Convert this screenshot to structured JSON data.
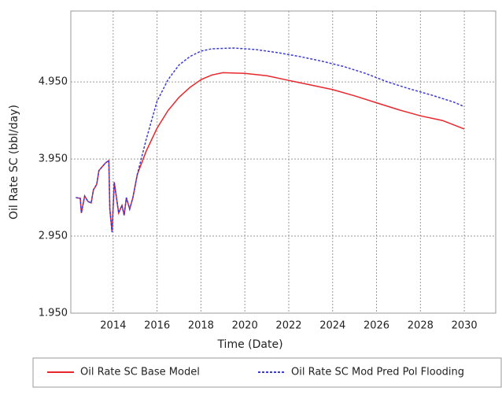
{
  "chart_data": {
    "type": "line",
    "xlabel": "Time (Date)",
    "ylabel": "Oil Rate SC (bbl/day)",
    "xlim": [
      2012.07,
      2031.43
    ],
    "ylim": [
      1.95,
      5.87
    ],
    "xticks": [
      2014,
      2016,
      2018,
      2020,
      2022,
      2024,
      2026,
      2028,
      2030
    ],
    "yticks": [
      {
        "value": 1.95,
        "label": "1.950"
      },
      {
        "value": 2.95,
        "label": "2.950"
      },
      {
        "value": 3.95,
        "label": "3.950"
      },
      {
        "value": 4.95,
        "label": "4.950"
      }
    ],
    "grid": true,
    "legend": "bottom",
    "series": [
      {
        "name": "Oil Rate SC Base Model",
        "color": "#e8262b",
        "dash": false,
        "x": [
          2012.3,
          2012.5,
          2012.55,
          2012.7,
          2012.85,
          2013.0,
          2013.1,
          2013.25,
          2013.35,
          2013.5,
          2013.65,
          2013.8,
          2013.85,
          2013.95,
          2014.05,
          2014.15,
          2014.25,
          2014.4,
          2014.5,
          2014.6,
          2014.75,
          2014.9,
          2015.1,
          2015.5,
          2016,
          2016.5,
          2017,
          2017.5,
          2018,
          2018.5,
          2019,
          2020,
          2021,
          2022,
          2023,
          2024,
          2025,
          2026,
          2027,
          2028,
          2029,
          2030
        ],
        "values": [
          3.45,
          3.44,
          3.25,
          3.47,
          3.4,
          3.38,
          3.55,
          3.62,
          3.8,
          3.85,
          3.9,
          3.93,
          3.3,
          3.0,
          3.65,
          3.45,
          3.25,
          3.35,
          3.22,
          3.45,
          3.3,
          3.45,
          3.75,
          4.05,
          4.35,
          4.58,
          4.75,
          4.88,
          4.98,
          5.04,
          5.07,
          5.06,
          5.03,
          4.97,
          4.91,
          4.85,
          4.77,
          4.68,
          4.59,
          4.51,
          4.45,
          4.34
        ]
      },
      {
        "name": "Oil Rate SC Mod Pred Pol Flooding",
        "color": "#3a3ad8",
        "dash": true,
        "x": [
          2012.3,
          2012.5,
          2012.55,
          2012.7,
          2012.85,
          2013.0,
          2013.1,
          2013.25,
          2013.35,
          2013.5,
          2013.65,
          2013.8,
          2013.85,
          2013.95,
          2014.05,
          2014.15,
          2014.25,
          2014.4,
          2014.5,
          2014.6,
          2014.75,
          2014.9,
          2015.1,
          2015.5,
          2016,
          2016.5,
          2017,
          2017.5,
          2018,
          2018.5,
          2019.5,
          2020.5,
          2021.5,
          2022.5,
          2023.5,
          2024.5,
          2025.5,
          2026.5,
          2027.5,
          2028.5,
          2029.5,
          2030
        ],
        "values": [
          3.45,
          3.44,
          3.25,
          3.47,
          3.4,
          3.38,
          3.55,
          3.62,
          3.8,
          3.85,
          3.9,
          3.93,
          3.3,
          3.0,
          3.65,
          3.45,
          3.25,
          3.35,
          3.22,
          3.45,
          3.3,
          3.45,
          3.75,
          4.2,
          4.7,
          4.98,
          5.17,
          5.28,
          5.35,
          5.38,
          5.39,
          5.37,
          5.33,
          5.28,
          5.22,
          5.15,
          5.06,
          4.95,
          4.86,
          4.78,
          4.69,
          4.63
        ]
      }
    ]
  }
}
